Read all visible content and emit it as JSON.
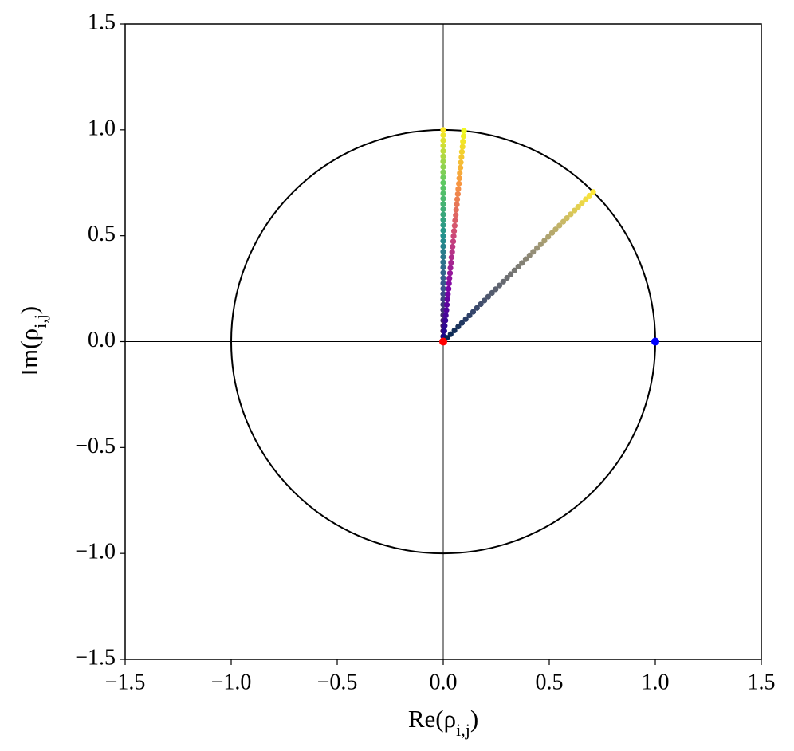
{
  "chart_data": {
    "type": "scatter",
    "xlabel": "Re(ρi,j)",
    "ylabel": "Im(ρi,j)",
    "xlim": [
      -1.5,
      1.5
    ],
    "ylim": [
      -1.5,
      1.5
    ],
    "xticks": [
      {
        "value": -1.5,
        "label": "−1.5"
      },
      {
        "value": -1,
        "label": "−1.0"
      },
      {
        "value": -0.5,
        "label": "−0.5"
      },
      {
        "value": 0,
        "label": "0.0"
      },
      0.5,
      {
        "value": 1,
        "label": "1.0"
      },
      1.5
    ],
    "yticks": [
      {
        "value": -1.5,
        "label": "−1.5"
      },
      {
        "value": -1,
        "label": "−1.0"
      },
      {
        "value": -0.5,
        "label": "−0.5"
      },
      {
        "value": 0,
        "label": "0.0"
      },
      0.5,
      {
        "value": 1,
        "label": "1.0"
      },
      1.5
    ],
    "zero_lines": true,
    "circle": {
      "radius": 1,
      "color": "#000000"
    },
    "series": [
      {
        "colormap": "viridis",
        "x": [
          0,
          0,
          0,
          0,
          0,
          0,
          0,
          0,
          0,
          0,
          0,
          0,
          0,
          0,
          0,
          0,
          0,
          0,
          0,
          0,
          0,
          0,
          0,
          0,
          0,
          0,
          0,
          0,
          0,
          0,
          0,
          0,
          0,
          0,
          0,
          0,
          0,
          0,
          0,
          0,
          0
        ],
        "y": [
          0,
          0.025,
          0.05,
          0.075,
          0.1,
          0.125,
          0.15,
          0.175,
          0.2,
          0.225,
          0.25,
          0.275,
          0.3,
          0.325,
          0.35,
          0.375,
          0.4,
          0.425,
          0.45,
          0.475,
          0.5,
          0.525,
          0.55,
          0.575,
          0.6,
          0.625,
          0.65,
          0.675,
          0.7,
          0.725,
          0.75,
          0.775,
          0.8,
          0.825,
          0.85,
          0.875,
          0.9,
          0.925,
          0.95,
          0.975,
          1
        ]
      },
      {
        "colormap": "plasma",
        "x": [
          0,
          0.002,
          0.005,
          0.007,
          0.01,
          0.012,
          0.015,
          0.017,
          0.02,
          0.022,
          0.025,
          0.027,
          0.029,
          0.032,
          0.034,
          0.037,
          0.039,
          0.042,
          0.044,
          0.047,
          0.049,
          0.051,
          0.054,
          0.056,
          0.059,
          0.061,
          0.064,
          0.066,
          0.069,
          0.071,
          0.074,
          0.076,
          0.078,
          0.081,
          0.083,
          0.086,
          0.088,
          0.091,
          0.093,
          0.096,
          0.098
        ],
        "y": [
          0,
          0.025,
          0.05,
          0.075,
          0.1,
          0.124,
          0.149,
          0.174,
          0.199,
          0.224,
          0.249,
          0.274,
          0.299,
          0.323,
          0.348,
          0.373,
          0.398,
          0.423,
          0.448,
          0.473,
          0.498,
          0.522,
          0.547,
          0.572,
          0.597,
          0.622,
          0.647,
          0.672,
          0.697,
          0.721,
          0.746,
          0.771,
          0.796,
          0.821,
          0.846,
          0.871,
          0.896,
          0.92,
          0.945,
          0.97,
          0.995
        ]
      },
      {
        "colormap": "cividis",
        "x": [
          0,
          0.018,
          0.035,
          0.053,
          0.071,
          0.088,
          0.106,
          0.124,
          0.141,
          0.159,
          0.177,
          0.194,
          0.212,
          0.23,
          0.247,
          0.265,
          0.283,
          0.301,
          0.318,
          0.336,
          0.354,
          0.371,
          0.389,
          0.407,
          0.424,
          0.442,
          0.46,
          0.477,
          0.495,
          0.513,
          0.53,
          0.548,
          0.566,
          0.583,
          0.601,
          0.619,
          0.636,
          0.654,
          0.672,
          0.689,
          0.707
        ],
        "y": [
          0,
          0.018,
          0.035,
          0.053,
          0.071,
          0.088,
          0.106,
          0.124,
          0.141,
          0.159,
          0.177,
          0.194,
          0.212,
          0.23,
          0.247,
          0.265,
          0.283,
          0.301,
          0.318,
          0.336,
          0.354,
          0.371,
          0.389,
          0.407,
          0.424,
          0.442,
          0.46,
          0.477,
          0.495,
          0.513,
          0.53,
          0.548,
          0.566,
          0.583,
          0.601,
          0.619,
          0.636,
          0.654,
          0.672,
          0.689,
          0.707
        ]
      },
      {
        "color": "#ff0000",
        "x": [
          0
        ],
        "y": [
          0
        ]
      },
      {
        "color": "#0000ff",
        "x": [
          1
        ],
        "y": [
          0
        ]
      }
    ]
  }
}
